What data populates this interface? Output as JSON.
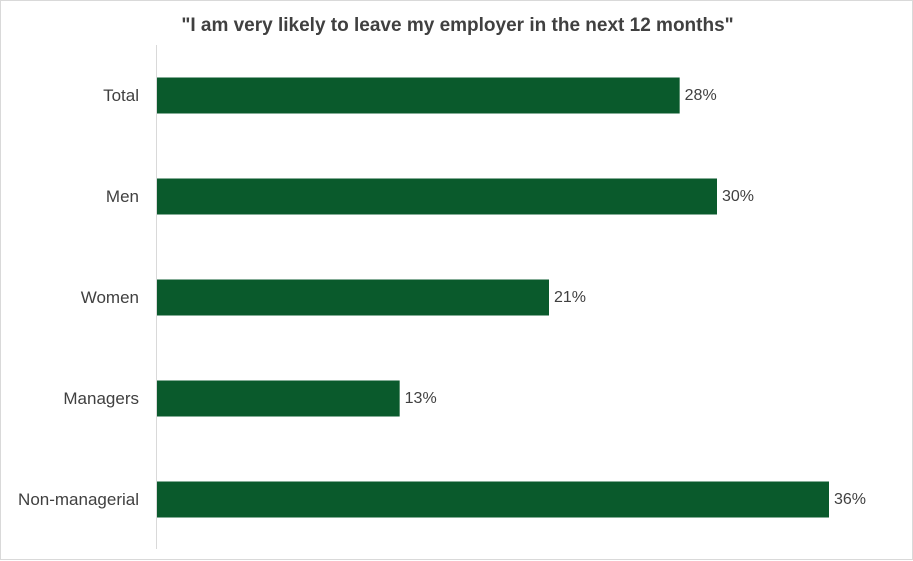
{
  "chart_data": {
    "type": "bar",
    "orientation": "horizontal",
    "title": "\"I am very likely to leave my employer in the next 12 months\"",
    "categories": [
      "Total",
      "Men",
      "Women",
      "Managers",
      "Non-managerial"
    ],
    "values": [
      28,
      30,
      21,
      13,
      36
    ],
    "data_labels": [
      "28%",
      "30%",
      "21%",
      "13%",
      "36%"
    ],
    "value_unit": "%",
    "xlim": [
      0,
      40
    ],
    "grid": false,
    "legend": "none",
    "bar_color": "#0a5a2c"
  }
}
